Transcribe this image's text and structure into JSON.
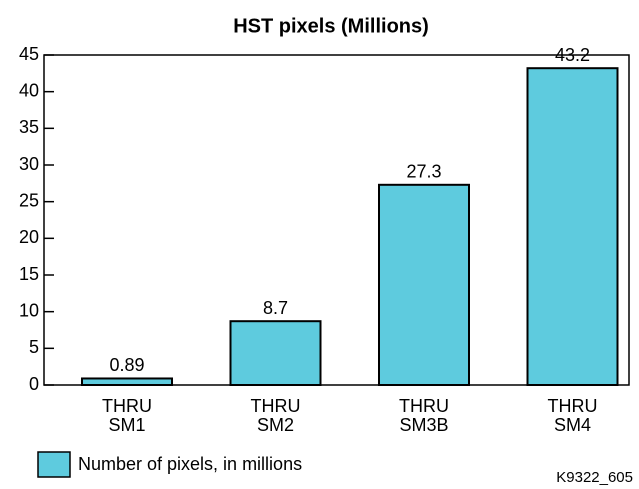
{
  "chart_data": {
    "type": "bar",
    "title": "HST pixels (Millions)",
    "categories": [
      "THRU\nSM1",
      "THRU\nSM2",
      "THRU\nSM3B",
      "THRU\nSM4"
    ],
    "series": [
      {
        "name": "Number of pixels, in millions",
        "color": "#5ecbde",
        "values": [
          0.89,
          8.7,
          27.3,
          43.2
        ]
      }
    ],
    "ylim": [
      0,
      45
    ],
    "yticks": [
      0,
      5,
      10,
      15,
      20,
      25,
      30,
      35,
      40,
      45
    ],
    "annotation": "K9322_605"
  }
}
